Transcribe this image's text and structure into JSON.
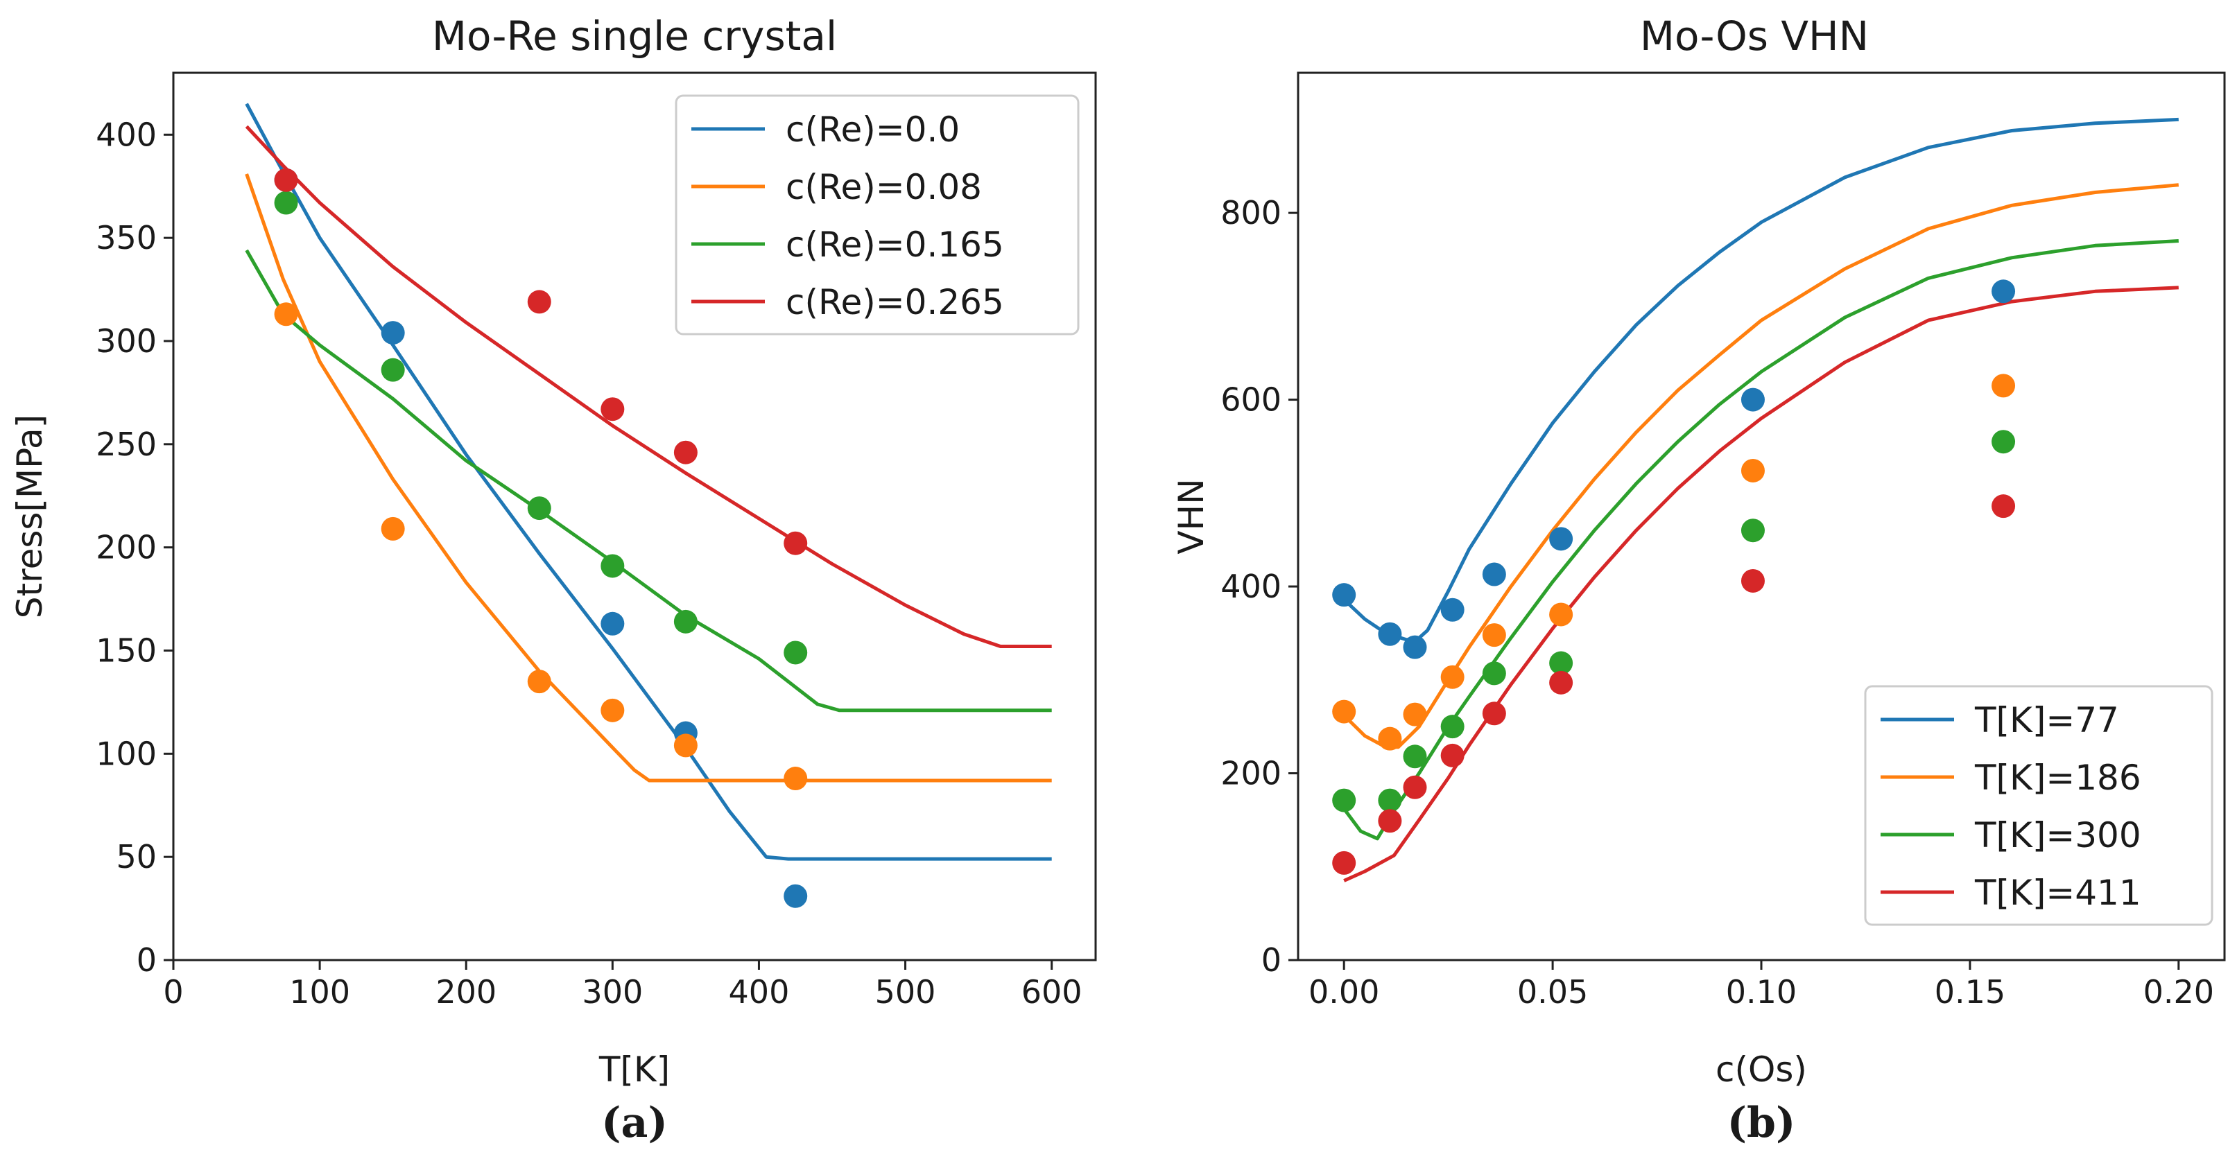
{
  "figure": {
    "caption_a": "(a)",
    "caption_b": "(b)"
  },
  "chart_data": [
    {
      "type": "line",
      "title": "Mo-Re single crystal",
      "xlabel": "T[K]",
      "ylabel": "Stress[MPa]",
      "xlim": [
        0,
        630
      ],
      "ylim": [
        0,
        430
      ],
      "xticks": [
        0,
        100,
        200,
        300,
        400,
        500,
        600
      ],
      "yticks": [
        0,
        50,
        100,
        150,
        200,
        250,
        300,
        350,
        400
      ],
      "legend_position": "top-right",
      "series": [
        {
          "name": "c(Re)=0.0",
          "color": "#1f77b4",
          "line": [
            [
              50,
              415
            ],
            [
              75,
              382
            ],
            [
              100,
              350
            ],
            [
              150,
              298
            ],
            [
              200,
              245
            ],
            [
              250,
              197
            ],
            [
              300,
              151
            ],
            [
              350,
              103
            ],
            [
              380,
              72
            ],
            [
              405,
              50
            ],
            [
              420,
              49
            ],
            [
              600,
              49
            ]
          ],
          "points": [
            [
              77,
              378
            ],
            [
              150,
              304
            ],
            [
              300,
              163
            ],
            [
              350,
              110
            ],
            [
              425,
              31
            ]
          ]
        },
        {
          "name": "c(Re)=0.08",
          "color": "#ff7f0e",
          "line": [
            [
              50,
              381
            ],
            [
              75,
              330
            ],
            [
              100,
              290
            ],
            [
              150,
              233
            ],
            [
              200,
              183
            ],
            [
              250,
              140
            ],
            [
              300,
              103
            ],
            [
              315,
              92
            ],
            [
              325,
              87
            ],
            [
              600,
              87
            ]
          ],
          "points": [
            [
              77,
              313
            ],
            [
              150,
              209
            ],
            [
              250,
              135
            ],
            [
              300,
              121
            ],
            [
              350,
              104
            ],
            [
              425,
              88
            ]
          ]
        },
        {
          "name": "c(Re)=0.165",
          "color": "#2ca02c",
          "line": [
            [
              50,
              344
            ],
            [
              75,
              313
            ],
            [
              100,
              298
            ],
            [
              150,
              272
            ],
            [
              200,
              242
            ],
            [
              250,
              218
            ],
            [
              300,
              193
            ],
            [
              350,
              167
            ],
            [
              400,
              146
            ],
            [
              440,
              124
            ],
            [
              455,
              121
            ],
            [
              600,
              121
            ]
          ],
          "points": [
            [
              77,
              367
            ],
            [
              150,
              286
            ],
            [
              250,
              219
            ],
            [
              300,
              191
            ],
            [
              350,
              164
            ],
            [
              425,
              149
            ]
          ]
        },
        {
          "name": "c(Re)=0.265",
          "color": "#d62728",
          "line": [
            [
              50,
              404
            ],
            [
              75,
              385
            ],
            [
              100,
              367
            ],
            [
              150,
              336
            ],
            [
              200,
              309
            ],
            [
              250,
              284
            ],
            [
              300,
              259
            ],
            [
              350,
              236
            ],
            [
              400,
              214
            ],
            [
              450,
              192
            ],
            [
              500,
              172
            ],
            [
              540,
              158
            ],
            [
              565,
              152
            ],
            [
              600,
              152
            ]
          ],
          "points": [
            [
              77,
              378
            ],
            [
              250,
              319
            ],
            [
              300,
              267
            ],
            [
              350,
              246
            ],
            [
              425,
              202
            ]
          ]
        }
      ]
    },
    {
      "type": "line",
      "title": "Mo-Os VHN",
      "xlabel": "c(Os)",
      "ylabel": "VHN",
      "xlim": [
        -0.011,
        0.211
      ],
      "ylim": [
        0,
        950
      ],
      "xticks": [
        "0.00",
        "0.05",
        "0.10",
        "0.15",
        "0.20"
      ],
      "yticks": [
        0,
        200,
        400,
        600,
        800
      ],
      "legend_position": "bottom-right",
      "series": [
        {
          "name": "T[K]=77",
          "color": "#1f77b4",
          "line": [
            [
              0,
              386
            ],
            [
              0.005,
              365
            ],
            [
              0.01,
              350
            ],
            [
              0.015,
              343
            ],
            [
              0.018,
              345
            ],
            [
              0.02,
              353
            ],
            [
              0.025,
              395
            ],
            [
              0.03,
              440
            ],
            [
              0.04,
              510
            ],
            [
              0.05,
              575
            ],
            [
              0.06,
              630
            ],
            [
              0.07,
              680
            ],
            [
              0.08,
              722
            ],
            [
              0.09,
              758
            ],
            [
              0.1,
              790
            ],
            [
              0.12,
              838
            ],
            [
              0.14,
              870
            ],
            [
              0.16,
              888
            ],
            [
              0.18,
              896
            ],
            [
              0.2,
              900
            ]
          ],
          "points": [
            [
              0,
              391
            ],
            [
              0.011,
              349
            ],
            [
              0.017,
              335
            ],
            [
              0.026,
              375
            ],
            [
              0.036,
              413
            ],
            [
              0.052,
              451
            ],
            [
              0.098,
              600
            ],
            [
              0.158,
              716
            ]
          ]
        },
        {
          "name": "T[K]=186",
          "color": "#ff7f0e",
          "line": [
            [
              0,
              262
            ],
            [
              0.005,
              240
            ],
            [
              0.01,
              228
            ],
            [
              0.013,
              228
            ],
            [
              0.018,
              250
            ],
            [
              0.025,
              300
            ],
            [
              0.03,
              335
            ],
            [
              0.04,
              400
            ],
            [
              0.05,
              460
            ],
            [
              0.06,
              515
            ],
            [
              0.07,
              565
            ],
            [
              0.08,
              610
            ],
            [
              0.09,
              648
            ],
            [
              0.1,
              685
            ],
            [
              0.12,
              740
            ],
            [
              0.14,
              783
            ],
            [
              0.16,
              808
            ],
            [
              0.18,
              822
            ],
            [
              0.2,
              830
            ]
          ],
          "points": [
            [
              0,
              266
            ],
            [
              0.011,
              237
            ],
            [
              0.017,
              263
            ],
            [
              0.026,
              303
            ],
            [
              0.036,
              348
            ],
            [
              0.052,
              370
            ],
            [
              0.098,
              524
            ],
            [
              0.158,
              615
            ]
          ]
        },
        {
          "name": "T[K]=300",
          "color": "#2ca02c",
          "line": [
            [
              0,
              162
            ],
            [
              0.004,
              138
            ],
            [
              0.008,
              130
            ],
            [
              0.012,
              160
            ],
            [
              0.018,
              200
            ],
            [
              0.025,
              250
            ],
            [
              0.03,
              282
            ],
            [
              0.04,
              345
            ],
            [
              0.05,
              405
            ],
            [
              0.06,
              460
            ],
            [
              0.07,
              510
            ],
            [
              0.08,
              555
            ],
            [
              0.09,
              595
            ],
            [
              0.1,
              630
            ],
            [
              0.12,
              688
            ],
            [
              0.14,
              730
            ],
            [
              0.16,
              752
            ],
            [
              0.18,
              765
            ],
            [
              0.2,
              770
            ]
          ],
          "points": [
            [
              0,
              171
            ],
            [
              0.011,
              171
            ],
            [
              0.017,
              218
            ],
            [
              0.026,
              250
            ],
            [
              0.036,
              307
            ],
            [
              0.052,
              318
            ],
            [
              0.098,
              460
            ],
            [
              0.158,
              555
            ]
          ]
        },
        {
          "name": "T[K]=411",
          "color": "#d62728",
          "line": [
            [
              0,
              85
            ],
            [
              0.005,
              95
            ],
            [
              0.012,
              112
            ],
            [
              0.018,
              150
            ],
            [
              0.025,
              195
            ],
            [
              0.03,
              230
            ],
            [
              0.04,
              295
            ],
            [
              0.05,
              355
            ],
            [
              0.06,
              410
            ],
            [
              0.07,
              460
            ],
            [
              0.08,
              505
            ],
            [
              0.09,
              545
            ],
            [
              0.1,
              580
            ],
            [
              0.12,
              640
            ],
            [
              0.14,
              685
            ],
            [
              0.16,
              705
            ],
            [
              0.18,
              716
            ],
            [
              0.2,
              720
            ]
          ],
          "points": [
            [
              0,
              104
            ],
            [
              0.011,
              149
            ],
            [
              0.017,
              185
            ],
            [
              0.026,
              219
            ],
            [
              0.036,
              264
            ],
            [
              0.052,
              297
            ],
            [
              0.098,
              406
            ],
            [
              0.158,
              486
            ]
          ]
        }
      ]
    }
  ]
}
